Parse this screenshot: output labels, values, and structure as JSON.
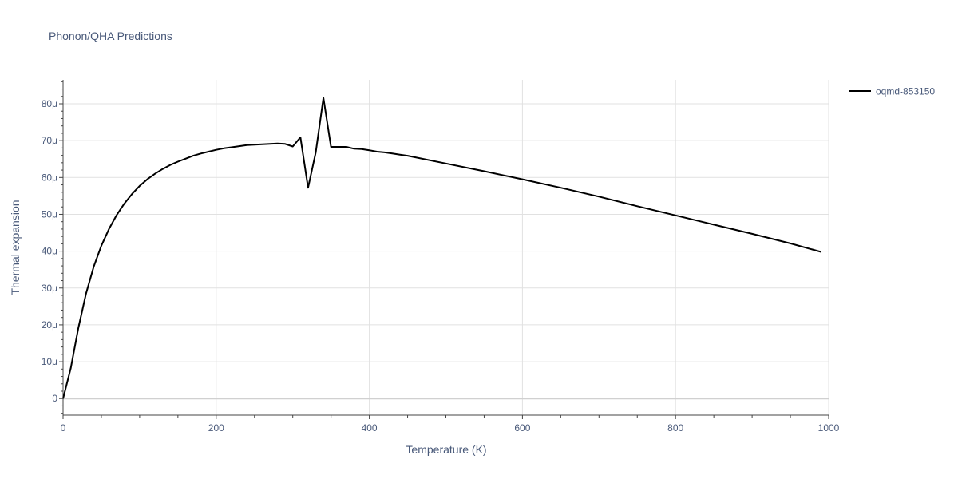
{
  "chart_data": {
    "type": "line",
    "title": "Phonon/QHA Predictions",
    "xlabel": "Temperature (K)",
    "ylabel": "Thermal expansion",
    "xlim": [
      0,
      1000
    ],
    "ylim": [
      -4.5e-06,
      8.65e-05
    ],
    "x_ticks": [
      0,
      200,
      400,
      600,
      800,
      1000
    ],
    "x_tick_labels": [
      "0",
      "200",
      "400",
      "600",
      "800",
      "1000"
    ],
    "y_ticks": [
      0,
      1e-05,
      2e-05,
      3e-05,
      4e-05,
      5e-05,
      6e-05,
      7e-05,
      8e-05
    ],
    "y_tick_labels": [
      "0",
      "10μ",
      "20μ",
      "30μ",
      "40μ",
      "50μ",
      "60μ",
      "70μ",
      "80μ"
    ],
    "grid": true,
    "legend_position": "top-right",
    "series": [
      {
        "name": "oqmd-853150",
        "color": "#000000",
        "x": [
          0,
          10,
          20,
          30,
          40,
          50,
          60,
          70,
          80,
          90,
          100,
          110,
          120,
          130,
          140,
          150,
          160,
          170,
          180,
          190,
          200,
          210,
          220,
          230,
          240,
          250,
          260,
          270,
          280,
          290,
          300,
          310,
          320,
          330,
          340,
          350,
          360,
          370,
          380,
          390,
          400,
          410,
          420,
          430,
          440,
          450,
          500,
          550,
          600,
          650,
          700,
          750,
          800,
          850,
          900,
          950,
          990
        ],
        "y": [
          0.0,
          8.2e-06,
          1.92e-05,
          2.85e-05,
          3.58e-05,
          4.15e-05,
          4.6e-05,
          4.98e-05,
          5.29e-05,
          5.55e-05,
          5.77e-05,
          5.95e-05,
          6.1e-05,
          6.23e-05,
          6.34e-05,
          6.43e-05,
          6.51e-05,
          6.59e-05,
          6.65e-05,
          6.7e-05,
          6.75e-05,
          6.79e-05,
          6.82e-05,
          6.85e-05,
          6.88e-05,
          6.89e-05,
          6.9e-05,
          6.91e-05,
          6.92e-05,
          6.91e-05,
          6.84e-05,
          7.09e-05,
          5.72e-05,
          6.68e-05,
          8.16e-05,
          6.83e-05,
          6.83e-05,
          6.83e-05,
          6.78e-05,
          6.77e-05,
          6.74e-05,
          6.7e-05,
          6.68e-05,
          6.65e-05,
          6.62e-05,
          6.59e-05,
          6.38e-05,
          6.17e-05,
          5.95e-05,
          5.72e-05,
          5.48e-05,
          5.22e-05,
          4.97e-05,
          4.72e-05,
          4.47e-05,
          4.21e-05,
          3.98e-05
        ]
      }
    ]
  }
}
